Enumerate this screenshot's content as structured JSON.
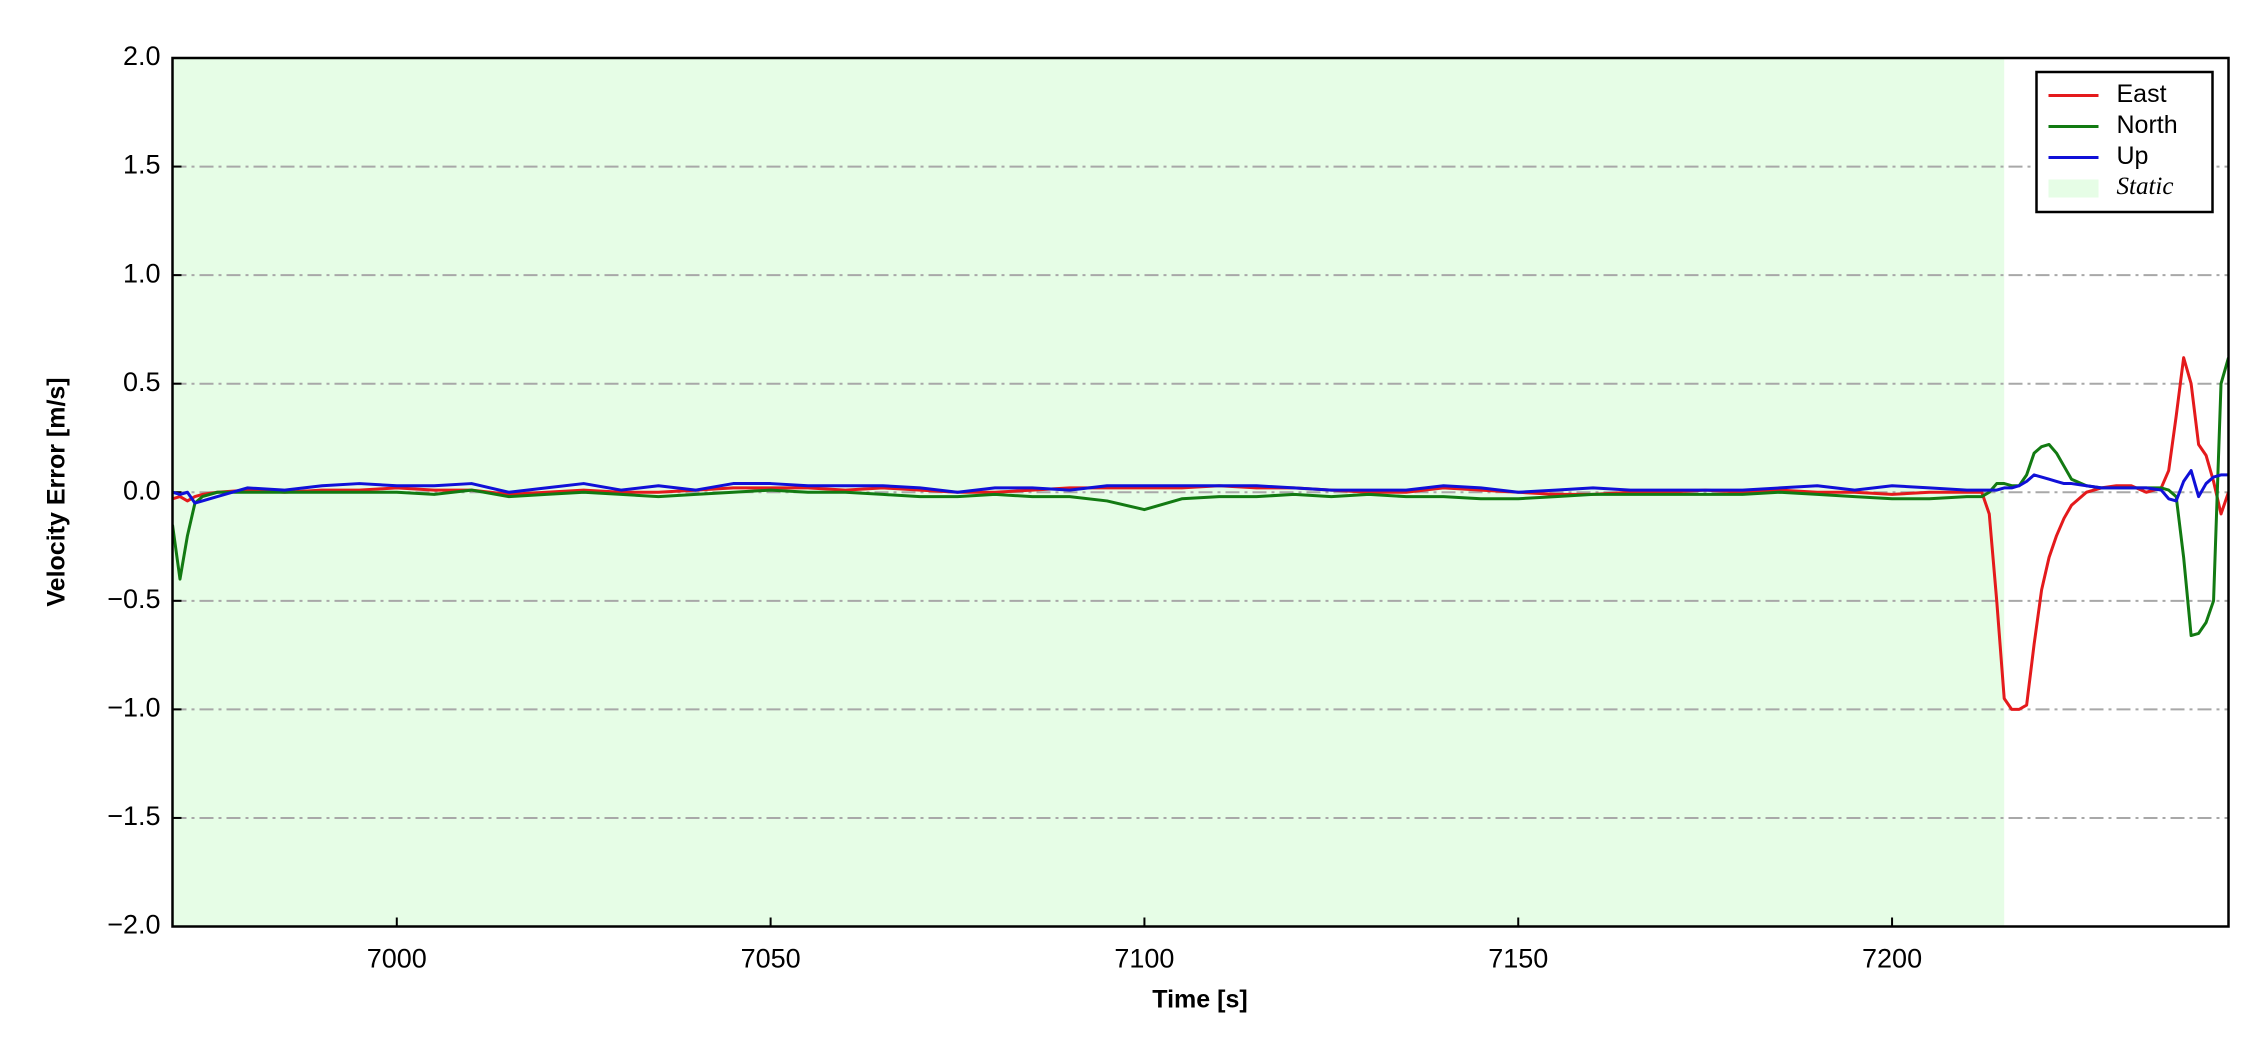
{
  "chart_data": {
    "type": "line",
    "xlabel": "Time [s]",
    "ylabel": "Velocity Error [m/s]",
    "xlim": [
      6970,
      7245
    ],
    "ylim": [
      -2.0,
      2.0
    ],
    "xticks": [
      7000,
      7050,
      7100,
      7150,
      7200
    ],
    "yticks": [
      {
        "value": -2.0,
        "label": "−2.0"
      },
      {
        "value": -1.5,
        "label": "−1.5"
      },
      {
        "value": -1.0,
        "label": "−1.0"
      },
      {
        "value": -0.5,
        "label": "−0.5"
      },
      {
        "value": 0.0,
        "label": "0.0"
      },
      {
        "value": 0.5,
        "label": "0.5"
      },
      {
        "value": 1.0,
        "label": "1.0"
      },
      {
        "value": 1.5,
        "label": "1.5"
      },
      {
        "value": 2.0,
        "label": "2.0"
      }
    ],
    "grid": true,
    "legend": "upper right",
    "shaded_regions": [
      {
        "name": "Static",
        "start": 6970,
        "end": 7215,
        "color": "#e6fde6"
      }
    ],
    "x": [
      6970,
      6971,
      6972,
      6973,
      6974,
      6976,
      6980,
      6985,
      6990,
      6995,
      7000,
      7005,
      7010,
      7015,
      7020,
      7025,
      7030,
      7035,
      7040,
      7045,
      7050,
      7055,
      7060,
      7065,
      7070,
      7075,
      7080,
      7085,
      7090,
      7095,
      7100,
      7105,
      7110,
      7115,
      7120,
      7125,
      7130,
      7135,
      7140,
      7145,
      7150,
      7155,
      7160,
      7165,
      7170,
      7175,
      7180,
      7185,
      7190,
      7195,
      7200,
      7205,
      7210,
      7212,
      7213,
      7214,
      7215,
      7216,
      7217,
      7218,
      7219,
      7220,
      7221,
      7222,
      7223,
      7224,
      7226,
      7228,
      7230,
      7232,
      7234,
      7236,
      7237,
      7238,
      7239,
      7240,
      7241,
      7242,
      7243,
      7244,
      7245
    ],
    "series": [
      {
        "name": "East",
        "color": "#e41a1c",
        "values": [
          -0.03,
          -0.02,
          -0.04,
          -0.02,
          -0.01,
          0,
          0.01,
          0,
          0.01,
          0.01,
          0.02,
          0.01,
          0.01,
          -0.01,
          0,
          0.01,
          0,
          0,
          0.01,
          0.02,
          0.02,
          0.02,
          0.01,
          0.02,
          0.01,
          0,
          0,
          0.01,
          0.02,
          0.02,
          0.02,
          0.02,
          0.03,
          0.02,
          0.02,
          0.01,
          0,
          0,
          0.02,
          0.01,
          0,
          -0.01,
          -0.01,
          0,
          0,
          0.01,
          0,
          0.01,
          0,
          0,
          -0.01,
          0,
          0,
          0,
          -0.1,
          -0.5,
          -0.95,
          -1.0,
          -1.0,
          -0.98,
          -0.7,
          -0.45,
          -0.3,
          -0.2,
          -0.12,
          -0.06,
          0,
          0.02,
          0.03,
          0.03,
          0,
          0.02,
          0.1,
          0.35,
          0.62,
          0.5,
          0.22,
          0.17,
          0.05,
          -0.1,
          0
        ]
      },
      {
        "name": "North",
        "color": "#127a12",
        "values": [
          -0.15,
          -0.4,
          -0.2,
          -0.05,
          -0.02,
          0,
          0,
          0,
          0,
          0,
          0,
          -0.01,
          0.01,
          -0.02,
          -0.01,
          0,
          -0.01,
          -0.02,
          -0.01,
          0,
          0.01,
          0,
          0,
          -0.01,
          -0.02,
          -0.02,
          -0.01,
          -0.02,
          -0.02,
          -0.04,
          -0.08,
          -0.03,
          -0.02,
          -0.02,
          -0.01,
          -0.02,
          -0.01,
          -0.02,
          -0.02,
          -0.03,
          -0.03,
          -0.02,
          -0.01,
          -0.01,
          -0.01,
          -0.01,
          -0.01,
          0,
          -0.01,
          -0.02,
          -0.03,
          -0.03,
          -0.02,
          -0.02,
          0,
          0.04,
          0.04,
          0.03,
          0.03,
          0.08,
          0.18,
          0.21,
          0.22,
          0.18,
          0.12,
          0.06,
          0.03,
          0.02,
          0.02,
          0.02,
          0.02,
          0.02,
          0.01,
          -0.02,
          -0.3,
          -0.66,
          -0.65,
          -0.6,
          -0.5,
          0.5,
          0.62
        ]
      },
      {
        "name": "Up",
        "color": "#1010d8",
        "values": [
          0,
          -0.01,
          0,
          -0.05,
          -0.04,
          -0.02,
          0.02,
          0.01,
          0.03,
          0.04,
          0.03,
          0.03,
          0.04,
          0,
          0.02,
          0.04,
          0.01,
          0.03,
          0.01,
          0.04,
          0.04,
          0.03,
          0.03,
          0.03,
          0.02,
          0,
          0.02,
          0.02,
          0.01,
          0.03,
          0.03,
          0.03,
          0.03,
          0.03,
          0.02,
          0.01,
          0.01,
          0.01,
          0.03,
          0.02,
          0,
          0.01,
          0.02,
          0.01,
          0.01,
          0.01,
          0.01,
          0.02,
          0.03,
          0.01,
          0.03,
          0.02,
          0.01,
          0.01,
          0.01,
          0.01,
          0.02,
          0.02,
          0.03,
          0.05,
          0.08,
          0.07,
          0.06,
          0.05,
          0.04,
          0.04,
          0.03,
          0.02,
          0.02,
          0.02,
          0.02,
          0.01,
          -0.03,
          -0.04,
          0.05,
          0.1,
          -0.02,
          0.04,
          0.07,
          0.08,
          0.08
        ]
      }
    ]
  }
}
